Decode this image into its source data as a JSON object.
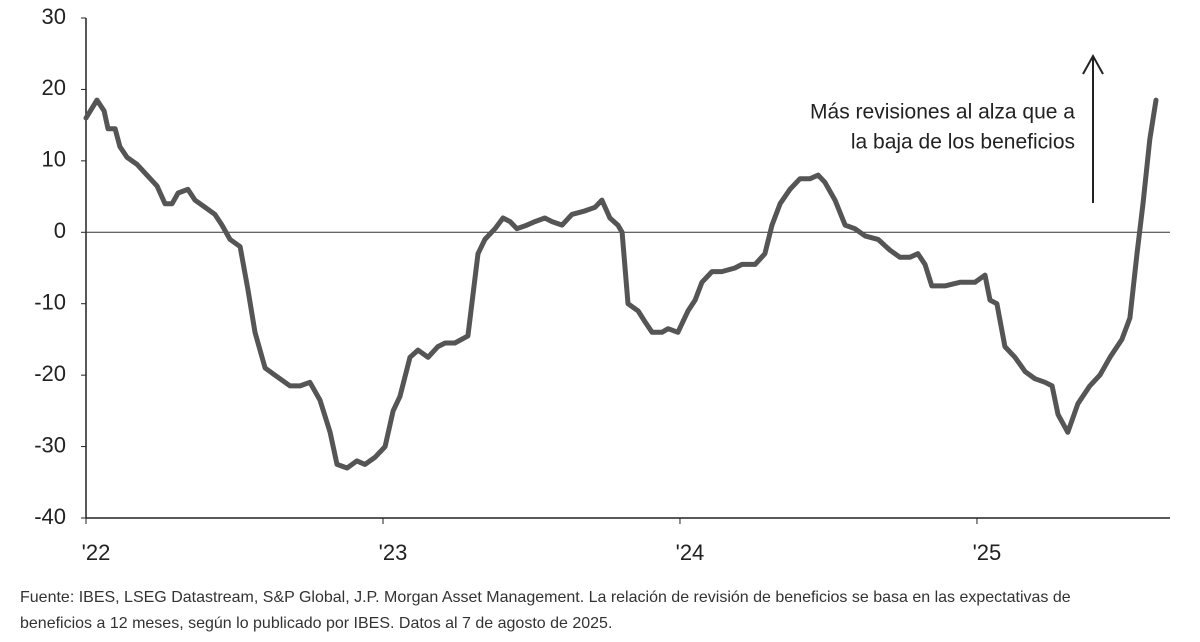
{
  "chart_data": {
    "type": "line",
    "x": [
      2022.0,
      2022.037,
      2022.061,
      2022.074,
      2022.098,
      2022.114,
      2022.138,
      2022.172,
      2022.205,
      2022.239,
      2022.266,
      2022.29,
      2022.31,
      2022.343,
      2022.367,
      2022.401,
      2022.434,
      2022.458,
      2022.485,
      2022.519,
      2022.545,
      2022.569,
      2022.603,
      2022.636,
      2022.687,
      2022.721,
      2022.754,
      2022.788,
      2022.822,
      2022.845,
      2022.879,
      2022.912,
      2022.939,
      2022.973,
      2023.007,
      2023.034,
      2023.057,
      2023.091,
      2023.118,
      2023.152,
      2023.185,
      2023.209,
      2023.242,
      2023.286,
      2023.32,
      2023.343,
      2023.377,
      2023.404,
      2023.428,
      2023.451,
      2023.485,
      2023.512,
      2023.545,
      2023.569,
      2023.603,
      2023.636,
      2023.68,
      2023.714,
      2023.737,
      2023.764,
      2023.791,
      2023.805,
      2023.825,
      2023.859,
      2023.882,
      2023.906,
      2023.939,
      2023.96,
      2023.993,
      2024.027,
      2024.051,
      2024.074,
      2024.108,
      2024.141,
      2024.185,
      2024.209,
      2024.253,
      2024.286,
      2024.31,
      2024.337,
      2024.37,
      2024.404,
      2024.438,
      2024.465,
      2024.488,
      2024.522,
      2024.556,
      2024.589,
      2024.623,
      2024.667,
      2024.707,
      2024.741,
      2024.774,
      2024.801,
      2024.825,
      2024.848,
      2024.892,
      2024.943,
      2024.993,
      2025.027,
      2025.044,
      2025.067,
      2025.094,
      2025.128,
      2025.162,
      2025.195,
      2025.229,
      2025.253,
      2025.273,
      2025.306,
      2025.34,
      2025.38,
      2025.414,
      2025.448,
      2025.488,
      2025.515,
      2025.539,
      2025.559,
      2025.582,
      2025.603
    ],
    "series": [
      {
        "color": "#555555",
        "values": [
          16,
          18.5,
          17,
          14.5,
          14.5,
          12,
          10.5,
          9.5,
          8,
          6.5,
          4,
          4,
          5.5,
          6,
          4.5,
          3.5,
          2.5,
          1,
          -1,
          -2,
          -8,
          -14,
          -19,
          -20,
          -21.5,
          -21.5,
          -21,
          -23.5,
          -28,
          -32.5,
          -33,
          -32,
          -32.5,
          -31.5,
          -30,
          -25,
          -23,
          -17.5,
          -16.5,
          -17.5,
          -16,
          -15.5,
          -15.5,
          -14.5,
          -3,
          -1,
          0.5,
          2,
          1.5,
          0.5,
          1,
          1.5,
          2,
          1.5,
          1,
          2.5,
          3,
          3.5,
          4.5,
          2,
          1,
          0,
          -10,
          -11,
          -12.5,
          -14,
          -14,
          -13.5,
          -14,
          -11,
          -9.5,
          -7,
          -5.5,
          -5.5,
          -5,
          -4.5,
          -4.5,
          -3,
          1,
          4,
          6,
          7.5,
          7.5,
          8,
          7,
          4.5,
          1,
          0.5,
          -0.5,
          -1,
          -2.5,
          -3.5,
          -3.5,
          -3,
          -4.5,
          -7.5,
          -7.5,
          -7,
          -7,
          -6,
          -9.5,
          -10,
          -16,
          -17.5,
          -19.5,
          -20.5,
          -21,
          -21.5,
          -25.5,
          -28,
          -24,
          -21.5,
          -20,
          -17.5,
          -15,
          -12,
          -3,
          4,
          13,
          18.5
        ]
      }
    ],
    "xlim": [
      2022,
      2025.65
    ],
    "xticks": [
      {
        "value": 2022,
        "label": "'22"
      },
      {
        "value": 2023,
        "label": "'23"
      },
      {
        "value": 2024,
        "label": "'24"
      },
      {
        "value": 2025,
        "label": "'25"
      }
    ],
    "ylim": [
      -40,
      30
    ],
    "yticks": [
      -40,
      -30,
      -20,
      -10,
      0,
      10,
      20,
      30
    ],
    "annotation": [
      "Más revisiones al alza que a",
      "la baja de los beneficios"
    ],
    "source": [
      "Fuente: IBES, LSEG Datastream, S&P Global, J.P. Morgan Asset Management. La relación de revisión de beneficios se basa en las expectativas de",
      "beneficios a 12 meses, según lo publicado por IBES. Datos al 7 de agosto de 2025."
    ]
  }
}
